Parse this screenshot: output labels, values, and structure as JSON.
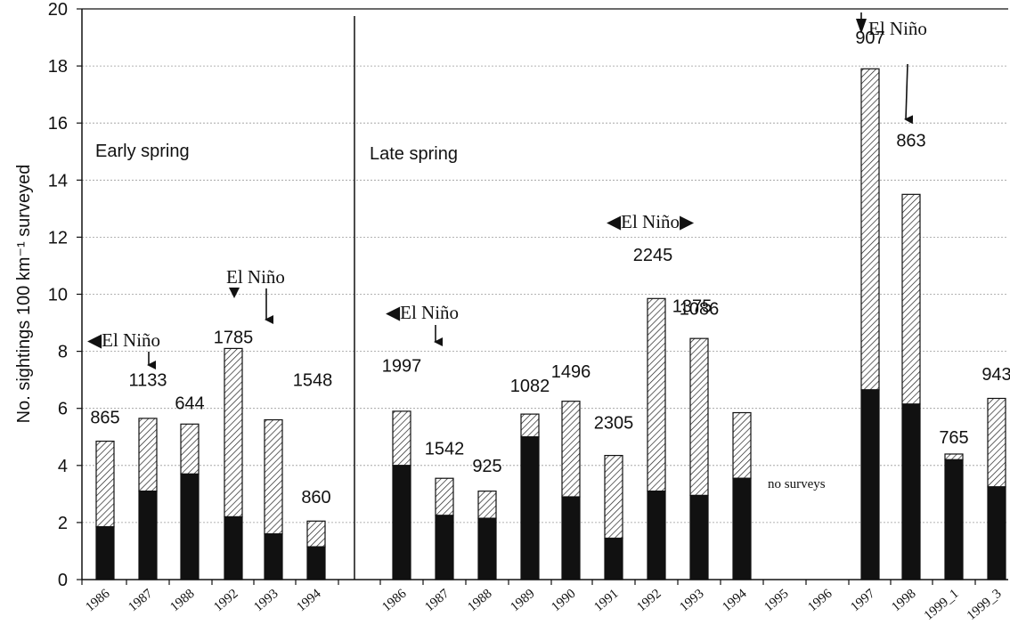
{
  "chart_data": {
    "type": "bar",
    "stacked": true,
    "ylabel": "No. sightings 100 km⁻¹ surveyed",
    "ylim": [
      0,
      20
    ],
    "yticks": [
      "0",
      "2",
      "4",
      "6",
      "8",
      "10",
      "12",
      "14",
      "16",
      "18",
      "20"
    ],
    "grid": "horizontal dotted",
    "panels": [
      {
        "name": "Early spring",
        "categories": [
          "1986",
          "1987",
          "1988",
          "1992",
          "1993",
          "1994"
        ],
        "bottom": [
          1.85,
          3.1,
          3.7,
          2.2,
          1.6,
          1.15
        ],
        "total": [
          4.85,
          5.65,
          5.45,
          8.1,
          5.6,
          2.05
        ],
        "counts": [
          "865",
          "1133",
          "644",
          "1785",
          "1548",
          "860"
        ]
      },
      {
        "name": "Late spring",
        "categories": [
          "1986",
          "1987",
          "1988",
          "1989",
          "1990",
          "1991",
          "1992",
          "1993",
          "1994",
          "1995",
          "1996",
          "1997",
          "1998",
          "1999_1",
          "1999_3"
        ],
        "bottom": [
          4.0,
          2.25,
          2.15,
          5.0,
          2.9,
          1.45,
          3.1,
          2.95,
          3.55,
          null,
          null,
          6.65,
          6.15,
          4.2,
          3.25
        ],
        "total": [
          5.9,
          3.55,
          3.1,
          5.8,
          6.25,
          4.35,
          9.85,
          8.45,
          5.85,
          null,
          null,
          17.9,
          13.5,
          4.4,
          6.35
        ],
        "counts": [
          "1997",
          "1542",
          "925",
          "1082",
          "1496",
          "2305",
          "1375",
          "1086",
          "",
          "",
          "",
          "907",
          "863",
          "765",
          "943"
        ]
      }
    ],
    "no_surveys_label": "no surveys",
    "el_nino_label": "El Niño",
    "annotations": [
      "◀El Niño",
      "El Niño",
      "◀El Niño",
      "◀El Niño▶",
      "El Niño"
    ],
    "extra_count": "2245",
    "series": [
      {
        "name": "",
        "fill": "solid black"
      },
      {
        "name": "",
        "fill": "diagonal hatch"
      }
    ]
  }
}
